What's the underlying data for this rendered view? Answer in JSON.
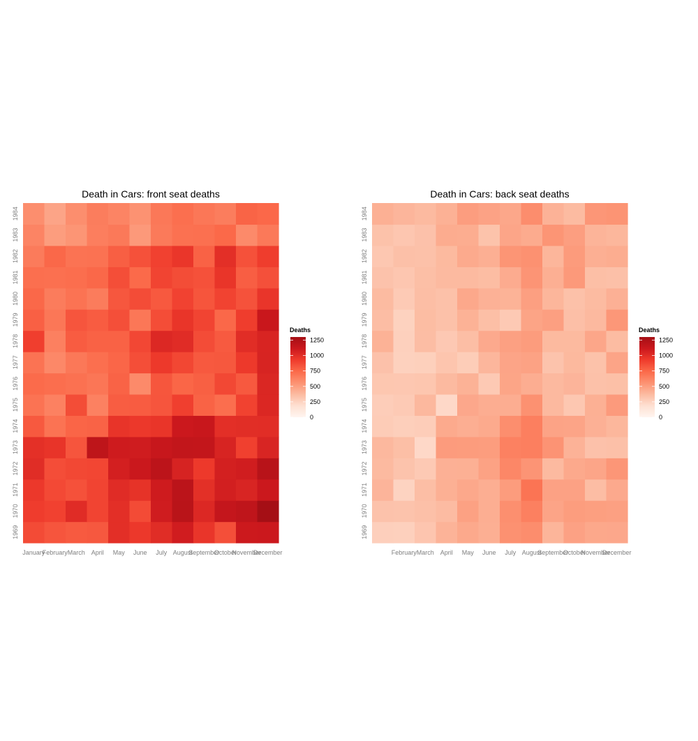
{
  "scale": {
    "name": "Deaths",
    "min": 0,
    "max": 1300,
    "breaks": [
      0,
      250,
      500,
      750,
      1000,
      1250
    ],
    "break_labels": [
      "0",
      "250",
      "500",
      "750",
      "1000",
      "1250"
    ],
    "colors": [
      "#fff5f0",
      "#fee0d2",
      "#fcbba1",
      "#fc9272",
      "#fb6a4a",
      "#ef3b2c",
      "#cb181d",
      "#a50f15"
    ]
  },
  "chart_data": [
    {
      "type": "heatmap",
      "title": "Death in Cars: front seat deaths",
      "x_labels": [
        "January",
        "February",
        "March",
        "April",
        "May",
        "June",
        "July",
        "August",
        "September",
        "October",
        "November",
        "December"
      ],
      "y_labels": [
        "1969",
        "1970",
        "1971",
        "1972",
        "1973",
        "1974",
        "1975",
        "1976",
        "1977",
        "1978",
        "1979",
        "1980",
        "1981",
        "1982",
        "1983",
        "1984"
      ],
      "legend_title": "Deaths",
      "values": [
        [
          867,
          825,
          806,
          814,
          991,
          945,
          1004,
          1091,
          958,
          850,
          1109,
          1113
        ],
        [
          925,
          903,
          1006,
          892,
          990,
          866,
          1095,
          1204,
          1029,
          1147,
          1171,
          1299
        ],
        [
          944,
          874,
          840,
          893,
          1007,
          973,
          1097,
          1194,
          988,
          1077,
          1045,
          1115
        ],
        [
          1005,
          857,
          879,
          887,
          1075,
          1121,
          1190,
          1058,
          939,
          1074,
          1089,
          1208
        ],
        [
          985,
          964,
          824,
          1177,
          1100,
          1094,
          1133,
          1160,
          1154,
          1050,
          907,
          1046
        ],
        [
          809,
          701,
          764,
          769,
          966,
          943,
          960,
          1115,
          1130,
          992,
          999,
          1001
        ],
        [
          699,
          634,
          859,
          637,
          794,
          797,
          824,
          913,
          771,
          725,
          901,
          1034
        ],
        [
          738,
          725,
          710,
          688,
          770,
          595,
          823,
          760,
          784,
          878,
          812,
          1037
        ],
        [
          702,
          603,
          680,
          718,
          757,
          855,
          939,
          883,
          811,
          815,
          941,
          1052
        ],
        [
          917,
          643,
          797,
          773,
          775,
          882,
          1027,
          1007,
          862,
          805,
          1001,
          1048
        ],
        [
          781,
          681,
          826,
          797,
          849,
          683,
          858,
          960,
          894,
          752,
          921,
          1126
        ],
        [
          751,
          657,
          703,
          658,
          819,
          862,
          811,
          899,
          827,
          896,
          836,
          959
        ],
        [
          720,
          713,
          723,
          751,
          854,
          742,
          893,
          859,
          843,
          960,
          789,
          844
        ],
        [
          663,
          751,
          703,
          705,
          787,
          842,
          904,
          953,
          776,
          993,
          841,
          921
        ],
        [
          624,
          509,
          545,
          648,
          674,
          525,
          669,
          709,
          713,
          746,
          592,
          672
        ],
        [
          577,
          474,
          576,
          655,
          624,
          557,
          677,
          718,
          683,
          656,
          768,
          750
        ]
      ]
    },
    {
      "type": "heatmap",
      "title": "Death in Cars: back seat deaths",
      "x_labels": [
        "",
        "February",
        "March",
        "April",
        "May",
        "June",
        "July",
        "August",
        "September",
        "October",
        "November",
        "December"
      ],
      "y_labels": [
        "1969",
        "1970",
        "1971",
        "1972",
        "1973",
        "1974",
        "1975",
        "1976",
        "1977",
        "1978",
        "1979",
        "1980",
        "1981",
        "1982",
        "1983",
        "1984"
      ],
      "legend_title": "Deaths",
      "values": [
        [
          269,
          265,
          319,
          407,
          454,
          427,
          564,
          580,
          400,
          487,
          459,
          460
        ],
        [
          335,
          330,
          345,
          369,
          489,
          429,
          571,
          641,
          476,
          509,
          500,
          495
        ],
        [
          401,
          249,
          356,
          421,
          459,
          431,
          514,
          695,
          487,
          487,
          361,
          451
        ],
        [
          374,
          330,
          299,
          419,
          422,
          486,
          610,
          546,
          376,
          454,
          472,
          539
        ],
        [
          385,
          351,
          225,
          515,
          513,
          508,
          636,
          644,
          551,
          412,
          339,
          344
        ],
        [
          288,
          272,
          282,
          449,
          429,
          449,
          578,
          647,
          480,
          474,
          419,
          390
        ],
        [
          279,
          294,
          383,
          225,
          460,
          435,
          436,
          561,
          379,
          309,
          421,
          519
        ],
        [
          313,
          310,
          318,
          377,
          413,
          301,
          473,
          435,
          379,
          401,
          340,
          347
        ],
        [
          339,
          261,
          268,
          322,
          283,
          392,
          476,
          486,
          329,
          382,
          337,
          474
        ],
        [
          413,
          266,
          360,
          305,
          358,
          451,
          494,
          512,
          378,
          378,
          466,
          368
        ],
        [
          360,
          257,
          363,
          343,
          413,
          352,
          299,
          477,
          499,
          350,
          379,
          533
        ],
        [
          371,
          296,
          358,
          343,
          457,
          416,
          409,
          496,
          396,
          340,
          370,
          420
        ],
        [
          335,
          316,
          353,
          374,
          374,
          363,
          444,
          547,
          425,
          524,
          352,
          346
        ],
        [
          312,
          346,
          340,
          378,
          449,
          427,
          544,
          561,
          394,
          516,
          427,
          437
        ],
        [
          338,
          314,
          339,
          441,
          437,
          332,
          469,
          445,
          545,
          502,
          405,
          391
        ],
        [
          421,
          397,
          377,
          417,
          506,
          484,
          462,
          581,
          412,
          373,
          538,
          550
        ]
      ]
    }
  ]
}
